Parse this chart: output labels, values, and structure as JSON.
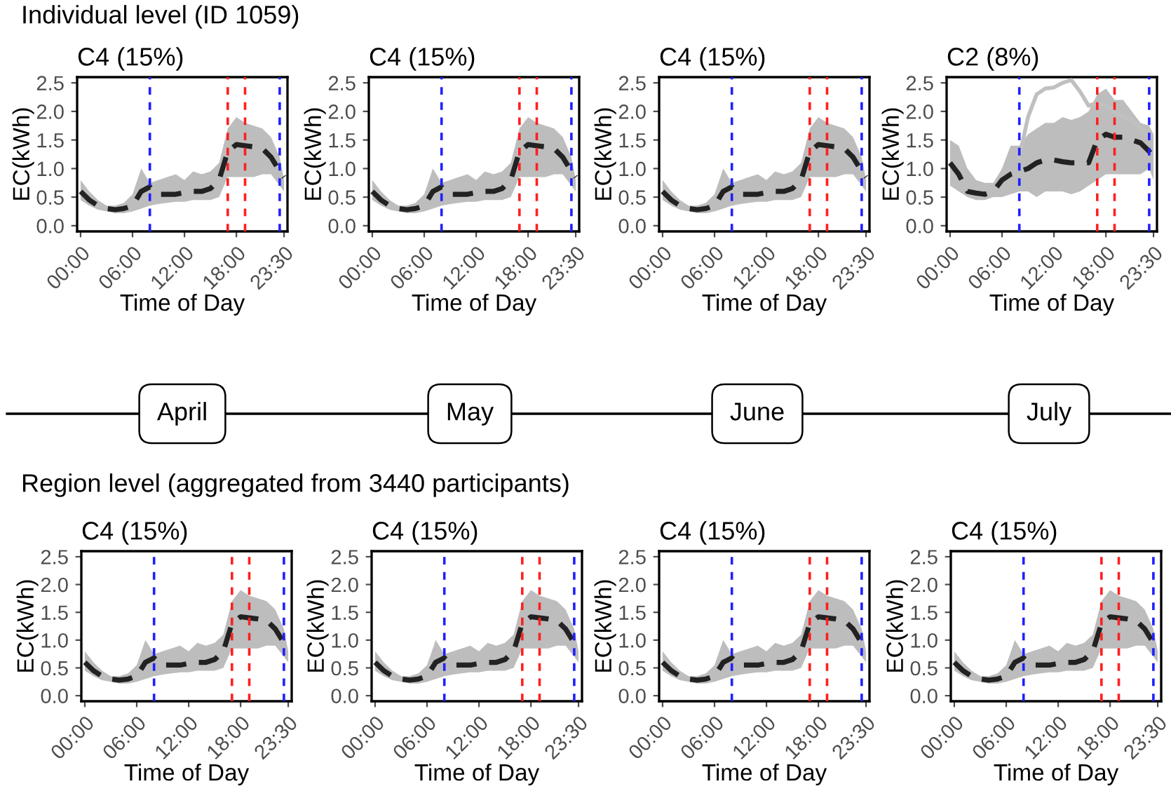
{
  "chart_data": [
    {
      "type": "line",
      "title": "C4 (15%)",
      "xlabel": "Time of Day",
      "ylabel": "EC(kWh)",
      "annotations": [
        "Individual level (ID 1059)",
        "April"
      ],
      "xlim": [
        -0.4,
        23.9
      ],
      "ylim": [
        -0.1,
        2.6
      ],
      "xticks": [
        {
          "value": 0,
          "label": "00:00"
        },
        {
          "value": 6,
          "label": "06:00"
        },
        {
          "value": 12,
          "label": "12:00"
        },
        {
          "value": 18,
          "label": "18:00"
        },
        {
          "value": 23.5,
          "label": "23:30"
        }
      ],
      "yticks": [
        {
          "value": 0,
          "label": "0.0"
        },
        0.5,
        {
          "value": 1,
          "label": "1.0"
        },
        1.5,
        {
          "value": 2,
          "label": "2.0"
        },
        2.5
      ],
      "grid": false,
      "ref_lines": [
        {
          "axis": "x",
          "value": 8,
          "color": "#2020ff",
          "line_style": "dashed"
        },
        {
          "axis": "x",
          "value": 17,
          "color": "#ff2020",
          "line_style": "dashed"
        },
        {
          "axis": "x",
          "value": 19,
          "color": "#ff2020",
          "line_style": "dashed"
        },
        {
          "axis": "x",
          "value": 23,
          "color": "#2020ff",
          "line_style": "dashed"
        }
      ],
      "x": [
        0,
        1,
        2,
        3,
        4,
        5,
        6,
        7,
        8,
        9,
        10,
        11,
        12,
        13,
        14,
        15,
        16,
        17,
        18,
        19,
        20,
        21,
        22,
        23,
        23.5
      ],
      "series": [
        {
          "color": "#222222",
          "line_style": "dashed",
          "values": [
            0.6,
            0.45,
            0.35,
            0.3,
            0.28,
            0.3,
            0.35,
            0.6,
            0.68,
            0.55,
            0.55,
            0.55,
            0.58,
            0.6,
            0.6,
            0.65,
            0.8,
            1.3,
            1.42,
            1.4,
            1.38,
            1.35,
            1.2,
            0.95,
            0.85
          ],
          "lower": [
            0.45,
            0.35,
            0.28,
            0.25,
            0.22,
            0.22,
            0.25,
            0.3,
            0.35,
            0.38,
            0.4,
            0.42,
            0.42,
            0.45,
            0.45,
            0.45,
            0.5,
            0.85,
            0.85,
            0.85,
            0.85,
            0.9,
            0.9,
            0.7,
            0.6
          ],
          "upper": [
            0.8,
            0.6,
            0.45,
            0.35,
            0.35,
            0.4,
            0.55,
            1.0,
            0.75,
            0.8,
            0.85,
            0.9,
            0.8,
            0.95,
            0.9,
            0.95,
            1.1,
            1.7,
            1.9,
            1.8,
            1.75,
            1.7,
            1.55,
            1.2,
            0.8
          ]
        }
      ]
    },
    {
      "type": "line",
      "title": "C4 (15%)",
      "xlabel": "Time of Day",
      "ylabel": "EC(kWh)",
      "annotations": [
        "May"
      ],
      "xlim": [
        -0.4,
        23.9
      ],
      "ylim": [
        -0.1,
        2.6
      ],
      "xticks": [
        {
          "value": 0,
          "label": "00:00"
        },
        {
          "value": 6,
          "label": "06:00"
        },
        {
          "value": 12,
          "label": "12:00"
        },
        {
          "value": 18,
          "label": "18:00"
        },
        {
          "value": 23.5,
          "label": "23:30"
        }
      ],
      "yticks": [
        {
          "value": 0,
          "label": "0.0"
        },
        0.5,
        {
          "value": 1,
          "label": "1.0"
        },
        1.5,
        {
          "value": 2,
          "label": "2.0"
        },
        2.5
      ],
      "grid": false,
      "ref_lines": [
        {
          "axis": "x",
          "value": 8,
          "color": "#2020ff",
          "line_style": "dashed"
        },
        {
          "axis": "x",
          "value": 17,
          "color": "#ff2020",
          "line_style": "dashed"
        },
        {
          "axis": "x",
          "value": 19,
          "color": "#ff2020",
          "line_style": "dashed"
        },
        {
          "axis": "x",
          "value": 23,
          "color": "#2020ff",
          "line_style": "dashed"
        }
      ],
      "x": [
        0,
        1,
        2,
        3,
        4,
        5,
        6,
        7,
        8,
        9,
        10,
        11,
        12,
        13,
        14,
        15,
        16,
        17,
        18,
        19,
        20,
        21,
        22,
        23,
        23.5
      ],
      "series": [
        {
          "color": "#222222",
          "line_style": "dashed",
          "values": [
            0.6,
            0.45,
            0.35,
            0.3,
            0.28,
            0.3,
            0.35,
            0.6,
            0.68,
            0.55,
            0.55,
            0.55,
            0.58,
            0.6,
            0.6,
            0.65,
            0.8,
            1.3,
            1.42,
            1.4,
            1.38,
            1.35,
            1.2,
            0.95,
            0.85
          ],
          "lower": [
            0.45,
            0.35,
            0.28,
            0.25,
            0.22,
            0.22,
            0.25,
            0.3,
            0.35,
            0.38,
            0.4,
            0.42,
            0.42,
            0.45,
            0.45,
            0.45,
            0.5,
            0.85,
            0.85,
            0.85,
            0.85,
            0.9,
            0.9,
            0.7,
            0.6
          ],
          "upper": [
            0.8,
            0.6,
            0.45,
            0.35,
            0.35,
            0.4,
            0.55,
            1.0,
            0.75,
            0.8,
            0.85,
            0.9,
            0.8,
            0.95,
            0.9,
            0.95,
            1.1,
            1.7,
            1.9,
            1.8,
            1.75,
            1.7,
            1.55,
            1.2,
            0.8
          ]
        }
      ]
    },
    {
      "type": "line",
      "title": "C4 (15%)",
      "xlabel": "Time of Day",
      "ylabel": "EC(kWh)",
      "annotations": [
        "June"
      ],
      "xlim": [
        -0.4,
        23.9
      ],
      "ylim": [
        -0.1,
        2.6
      ],
      "xticks": [
        {
          "value": 0,
          "label": "00:00"
        },
        {
          "value": 6,
          "label": "06:00"
        },
        {
          "value": 12,
          "label": "12:00"
        },
        {
          "value": 18,
          "label": "18:00"
        },
        {
          "value": 23.5,
          "label": "23:30"
        }
      ],
      "yticks": [
        {
          "value": 0,
          "label": "0.0"
        },
        0.5,
        {
          "value": 1,
          "label": "1.0"
        },
        1.5,
        {
          "value": 2,
          "label": "2.0"
        },
        2.5
      ],
      "grid": false,
      "ref_lines": [
        {
          "axis": "x",
          "value": 8,
          "color": "#2020ff",
          "line_style": "dashed"
        },
        {
          "axis": "x",
          "value": 17,
          "color": "#ff2020",
          "line_style": "dashed"
        },
        {
          "axis": "x",
          "value": 19,
          "color": "#ff2020",
          "line_style": "dashed"
        },
        {
          "axis": "x",
          "value": 23,
          "color": "#2020ff",
          "line_style": "dashed"
        }
      ],
      "x": [
        0,
        1,
        2,
        3,
        4,
        5,
        6,
        7,
        8,
        9,
        10,
        11,
        12,
        13,
        14,
        15,
        16,
        17,
        18,
        19,
        20,
        21,
        22,
        23,
        23.5
      ],
      "series": [
        {
          "color": "#222222",
          "line_style": "dashed",
          "values": [
            0.6,
            0.45,
            0.35,
            0.3,
            0.28,
            0.3,
            0.35,
            0.6,
            0.68,
            0.55,
            0.55,
            0.55,
            0.58,
            0.6,
            0.6,
            0.65,
            0.8,
            1.3,
            1.42,
            1.4,
            1.38,
            1.35,
            1.2,
            0.95,
            0.85
          ],
          "lower": [
            0.45,
            0.35,
            0.28,
            0.25,
            0.22,
            0.22,
            0.25,
            0.3,
            0.35,
            0.38,
            0.4,
            0.42,
            0.42,
            0.45,
            0.45,
            0.45,
            0.5,
            0.85,
            0.85,
            0.85,
            0.85,
            0.9,
            0.9,
            0.7,
            0.6
          ],
          "upper": [
            0.8,
            0.6,
            0.45,
            0.35,
            0.35,
            0.4,
            0.55,
            1.0,
            0.75,
            0.8,
            0.85,
            0.9,
            0.8,
            0.95,
            0.9,
            0.95,
            1.1,
            1.7,
            1.9,
            1.8,
            1.75,
            1.7,
            1.55,
            1.2,
            0.8
          ]
        }
      ]
    },
    {
      "type": "line",
      "title": "C2 (8%)",
      "xlabel": "Time of Day",
      "ylabel": "EC(kWh)",
      "annotations": [
        "July"
      ],
      "xlim": [
        -0.4,
        23.9
      ],
      "ylim": [
        -0.1,
        2.6
      ],
      "xticks": [
        {
          "value": 0,
          "label": "00:00"
        },
        {
          "value": 6,
          "label": "06:00"
        },
        {
          "value": 12,
          "label": "12:00"
        },
        {
          "value": 18,
          "label": "18:00"
        },
        {
          "value": 23.5,
          "label": "23:30"
        }
      ],
      "yticks": [
        {
          "value": 0,
          "label": "0.0"
        },
        0.5,
        {
          "value": 1,
          "label": "1.0"
        },
        1.5,
        {
          "value": 2,
          "label": "2.0"
        },
        2.5
      ],
      "grid": false,
      "ref_lines": [
        {
          "axis": "x",
          "value": 8,
          "color": "#2020ff",
          "line_style": "dashed"
        },
        {
          "axis": "x",
          "value": 17,
          "color": "#ff2020",
          "line_style": "dashed"
        },
        {
          "axis": "x",
          "value": 19,
          "color": "#ff2020",
          "line_style": "dashed"
        },
        {
          "axis": "x",
          "value": 23,
          "color": "#2020ff",
          "line_style": "dashed"
        }
      ],
      "x": [
        0,
        1,
        2,
        3,
        4,
        5,
        6,
        7,
        8,
        9,
        10,
        11,
        12,
        13,
        14,
        15,
        16,
        17,
        18,
        19,
        20,
        21,
        22,
        23,
        23.5
      ],
      "series": [
        {
          "color": "#222222",
          "line_style": "dashed",
          "values": [
            1.1,
            0.9,
            0.6,
            0.57,
            0.55,
            0.6,
            0.8,
            0.9,
            0.95,
            1.0,
            1.1,
            1.15,
            1.15,
            1.12,
            1.1,
            1.1,
            1.1,
            1.5,
            1.6,
            1.55,
            1.55,
            1.5,
            1.45,
            1.3,
            1.2
          ],
          "lower": [
            0.7,
            0.6,
            0.5,
            0.45,
            0.45,
            0.5,
            0.5,
            0.55,
            0.6,
            0.6,
            0.5,
            0.6,
            0.6,
            0.6,
            0.55,
            0.6,
            0.7,
            0.8,
            0.9,
            0.9,
            0.9,
            0.9,
            0.9,
            1.0,
            0.8
          ],
          "upper": [
            1.5,
            1.4,
            1.0,
            0.8,
            0.75,
            0.75,
            1.0,
            1.4,
            1.4,
            1.6,
            1.7,
            1.8,
            1.8,
            1.9,
            1.85,
            1.9,
            2.0,
            2.3,
            2.4,
            2.2,
            2.2,
            2.0,
            1.8,
            1.75,
            1.6
          ]
        },
        {
          "color": "#c0c0c0",
          "line_style": "solid",
          "x": [
            8,
            9,
            10,
            11,
            12,
            13,
            14,
            15,
            16,
            17,
            18,
            19,
            20,
            21,
            22,
            23
          ],
          "values": [
            1.2,
            1.9,
            2.3,
            2.4,
            2.42,
            2.5,
            2.55,
            2.35,
            2.1,
            2.15,
            2.1,
            2.0,
            1.9,
            1.85,
            1.7,
            1.55
          ]
        }
      ]
    },
    {
      "type": "line",
      "title": "C4 (15%)",
      "xlabel": "Time of Day",
      "ylabel": "EC(kWh)",
      "annotations": [
        "Region level (aggregated from 3440 participants)"
      ],
      "xlim": [
        -0.4,
        23.9
      ],
      "ylim": [
        -0.1,
        2.6
      ],
      "xticks": [
        {
          "value": 0,
          "label": "00:00"
        },
        {
          "value": 6,
          "label": "06:00"
        },
        {
          "value": 12,
          "label": "12:00"
        },
        {
          "value": 18,
          "label": "18:00"
        },
        {
          "value": 23.5,
          "label": "23:30"
        }
      ],
      "yticks": [
        {
          "value": 0,
          "label": "0.0"
        },
        0.5,
        {
          "value": 1,
          "label": "1.0"
        },
        1.5,
        {
          "value": 2,
          "label": "2.0"
        },
        2.5
      ],
      "grid": false,
      "ref_lines": [
        {
          "axis": "x",
          "value": 8,
          "color": "#2020ff",
          "line_style": "dashed"
        },
        {
          "axis": "x",
          "value": 17,
          "color": "#ff2020",
          "line_style": "dashed"
        },
        {
          "axis": "x",
          "value": 19,
          "color": "#ff2020",
          "line_style": "dashed"
        },
        {
          "axis": "x",
          "value": 23,
          "color": "#2020ff",
          "line_style": "dashed"
        }
      ],
      "x": [
        0,
        1,
        2,
        3,
        4,
        5,
        6,
        7,
        8,
        9,
        10,
        11,
        12,
        13,
        14,
        15,
        16,
        17,
        18,
        19,
        20,
        21,
        22,
        23,
        23.5
      ],
      "series": [
        {
          "color": "#222222",
          "line_style": "dashed",
          "values": [
            0.6,
            0.45,
            0.35,
            0.3,
            0.28,
            0.3,
            0.35,
            0.6,
            0.68,
            0.55,
            0.55,
            0.55,
            0.58,
            0.6,
            0.6,
            0.65,
            0.8,
            1.3,
            1.42,
            1.4,
            1.38,
            1.35,
            1.2,
            0.95,
            0.85
          ],
          "lower": [
            0.45,
            0.35,
            0.28,
            0.25,
            0.22,
            0.22,
            0.25,
            0.3,
            0.35,
            0.38,
            0.4,
            0.42,
            0.42,
            0.45,
            0.45,
            0.45,
            0.5,
            0.85,
            0.85,
            0.85,
            0.85,
            0.9,
            0.9,
            0.7,
            0.6
          ],
          "upper": [
            0.8,
            0.6,
            0.45,
            0.35,
            0.35,
            0.4,
            0.55,
            1.0,
            0.75,
            0.8,
            0.85,
            0.9,
            0.8,
            0.95,
            0.9,
            0.95,
            1.1,
            1.7,
            1.9,
            1.8,
            1.75,
            1.7,
            1.55,
            1.2,
            0.8
          ]
        }
      ]
    },
    {
      "type": "line",
      "title": "C4 (15%)",
      "xlabel": "Time of Day",
      "ylabel": "EC(kWh)",
      "xlim": [
        -0.4,
        23.9
      ],
      "ylim": [
        -0.1,
        2.6
      ],
      "xticks": [
        {
          "value": 0,
          "label": "00:00"
        },
        {
          "value": 6,
          "label": "06:00"
        },
        {
          "value": 12,
          "label": "12:00"
        },
        {
          "value": 18,
          "label": "18:00"
        },
        {
          "value": 23.5,
          "label": "23:30"
        }
      ],
      "yticks": [
        {
          "value": 0,
          "label": "0.0"
        },
        0.5,
        {
          "value": 1,
          "label": "1.0"
        },
        1.5,
        {
          "value": 2,
          "label": "2.0"
        },
        2.5
      ],
      "grid": false,
      "ref_lines": [
        {
          "axis": "x",
          "value": 8,
          "color": "#2020ff",
          "line_style": "dashed"
        },
        {
          "axis": "x",
          "value": 17,
          "color": "#ff2020",
          "line_style": "dashed"
        },
        {
          "axis": "x",
          "value": 19,
          "color": "#ff2020",
          "line_style": "dashed"
        },
        {
          "axis": "x",
          "value": 23,
          "color": "#2020ff",
          "line_style": "dashed"
        }
      ],
      "x": [
        0,
        1,
        2,
        3,
        4,
        5,
        6,
        7,
        8,
        9,
        10,
        11,
        12,
        13,
        14,
        15,
        16,
        17,
        18,
        19,
        20,
        21,
        22,
        23,
        23.5
      ],
      "series": [
        {
          "color": "#222222",
          "line_style": "dashed",
          "values": [
            0.6,
            0.45,
            0.35,
            0.3,
            0.28,
            0.3,
            0.35,
            0.6,
            0.68,
            0.55,
            0.55,
            0.55,
            0.58,
            0.6,
            0.6,
            0.65,
            0.8,
            1.3,
            1.42,
            1.4,
            1.38,
            1.35,
            1.2,
            0.95,
            0.85
          ],
          "lower": [
            0.45,
            0.35,
            0.28,
            0.25,
            0.22,
            0.22,
            0.25,
            0.3,
            0.35,
            0.38,
            0.4,
            0.42,
            0.42,
            0.45,
            0.45,
            0.45,
            0.5,
            0.85,
            0.85,
            0.85,
            0.85,
            0.9,
            0.9,
            0.7,
            0.6
          ],
          "upper": [
            0.8,
            0.6,
            0.45,
            0.35,
            0.35,
            0.4,
            0.55,
            1.0,
            0.75,
            0.8,
            0.85,
            0.9,
            0.8,
            0.95,
            0.9,
            0.95,
            1.1,
            1.7,
            1.9,
            1.8,
            1.75,
            1.7,
            1.55,
            1.2,
            0.8
          ]
        }
      ]
    },
    {
      "type": "line",
      "title": "C4 (15%)",
      "xlabel": "Time of Day",
      "ylabel": "EC(kWh)",
      "xlim": [
        -0.4,
        23.9
      ],
      "ylim": [
        -0.1,
        2.6
      ],
      "xticks": [
        {
          "value": 0,
          "label": "00:00"
        },
        {
          "value": 6,
          "label": "06:00"
        },
        {
          "value": 12,
          "label": "12:00"
        },
        {
          "value": 18,
          "label": "18:00"
        },
        {
          "value": 23.5,
          "label": "23:30"
        }
      ],
      "yticks": [
        {
          "value": 0,
          "label": "0.0"
        },
        0.5,
        {
          "value": 1,
          "label": "1.0"
        },
        1.5,
        {
          "value": 2,
          "label": "2.0"
        },
        2.5
      ],
      "grid": false,
      "ref_lines": [
        {
          "axis": "x",
          "value": 8,
          "color": "#2020ff",
          "line_style": "dashed"
        },
        {
          "axis": "x",
          "value": 17,
          "color": "#ff2020",
          "line_style": "dashed"
        },
        {
          "axis": "x",
          "value": 19,
          "color": "#ff2020",
          "line_style": "dashed"
        },
        {
          "axis": "x",
          "value": 23,
          "color": "#2020ff",
          "line_style": "dashed"
        }
      ],
      "x": [
        0,
        1,
        2,
        3,
        4,
        5,
        6,
        7,
        8,
        9,
        10,
        11,
        12,
        13,
        14,
        15,
        16,
        17,
        18,
        19,
        20,
        21,
        22,
        23,
        23.5
      ],
      "series": [
        {
          "color": "#222222",
          "line_style": "dashed",
          "values": [
            0.6,
            0.45,
            0.35,
            0.3,
            0.28,
            0.3,
            0.35,
            0.6,
            0.68,
            0.55,
            0.55,
            0.55,
            0.58,
            0.6,
            0.6,
            0.65,
            0.8,
            1.3,
            1.42,
            1.4,
            1.38,
            1.35,
            1.2,
            0.95,
            0.85
          ],
          "lower": [
            0.45,
            0.35,
            0.28,
            0.25,
            0.22,
            0.22,
            0.25,
            0.3,
            0.35,
            0.38,
            0.4,
            0.42,
            0.42,
            0.45,
            0.45,
            0.45,
            0.5,
            0.85,
            0.85,
            0.85,
            0.85,
            0.9,
            0.9,
            0.7,
            0.6
          ],
          "upper": [
            0.8,
            0.6,
            0.45,
            0.35,
            0.35,
            0.4,
            0.55,
            1.0,
            0.75,
            0.8,
            0.85,
            0.9,
            0.8,
            0.95,
            0.9,
            0.95,
            1.1,
            1.7,
            1.9,
            1.8,
            1.75,
            1.7,
            1.55,
            1.2,
            0.8
          ]
        }
      ]
    },
    {
      "type": "line",
      "title": "C4 (15%)",
      "xlabel": "Time of Day",
      "ylabel": "EC(kWh)",
      "xlim": [
        -0.4,
        23.9
      ],
      "ylim": [
        -0.1,
        2.6
      ],
      "xticks": [
        {
          "value": 0,
          "label": "00:00"
        },
        {
          "value": 6,
          "label": "06:00"
        },
        {
          "value": 12,
          "label": "12:00"
        },
        {
          "value": 18,
          "label": "18:00"
        },
        {
          "value": 23.5,
          "label": "23:30"
        }
      ],
      "yticks": [
        {
          "value": 0,
          "label": "0.0"
        },
        0.5,
        {
          "value": 1,
          "label": "1.0"
        },
        1.5,
        {
          "value": 2,
          "label": "2.0"
        },
        2.5
      ],
      "grid": false,
      "ref_lines": [
        {
          "axis": "x",
          "value": 8,
          "color": "#2020ff",
          "line_style": "dashed"
        },
        {
          "axis": "x",
          "value": 17,
          "color": "#ff2020",
          "line_style": "dashed"
        },
        {
          "axis": "x",
          "value": 19,
          "color": "#ff2020",
          "line_style": "dashed"
        },
        {
          "axis": "x",
          "value": 23,
          "color": "#2020ff",
          "line_style": "dashed"
        }
      ],
      "x": [
        0,
        1,
        2,
        3,
        4,
        5,
        6,
        7,
        8,
        9,
        10,
        11,
        12,
        13,
        14,
        15,
        16,
        17,
        18,
        19,
        20,
        21,
        22,
        23,
        23.5
      ],
      "series": [
        {
          "color": "#222222",
          "line_style": "dashed",
          "values": [
            0.6,
            0.45,
            0.35,
            0.3,
            0.28,
            0.3,
            0.35,
            0.6,
            0.68,
            0.55,
            0.55,
            0.55,
            0.58,
            0.6,
            0.6,
            0.65,
            0.8,
            1.3,
            1.42,
            1.4,
            1.38,
            1.35,
            1.2,
            0.95,
            0.85
          ],
          "lower": [
            0.45,
            0.35,
            0.28,
            0.25,
            0.22,
            0.22,
            0.25,
            0.3,
            0.35,
            0.38,
            0.4,
            0.42,
            0.42,
            0.45,
            0.45,
            0.45,
            0.5,
            0.85,
            0.85,
            0.85,
            0.85,
            0.9,
            0.9,
            0.7,
            0.6
          ],
          "upper": [
            0.8,
            0.6,
            0.45,
            0.35,
            0.35,
            0.4,
            0.55,
            1.0,
            0.75,
            0.8,
            0.85,
            0.9,
            0.8,
            0.95,
            0.9,
            0.95,
            1.1,
            1.7,
            1.9,
            1.8,
            1.75,
            1.7,
            1.55,
            1.2,
            0.8
          ]
        }
      ]
    }
  ]
}
